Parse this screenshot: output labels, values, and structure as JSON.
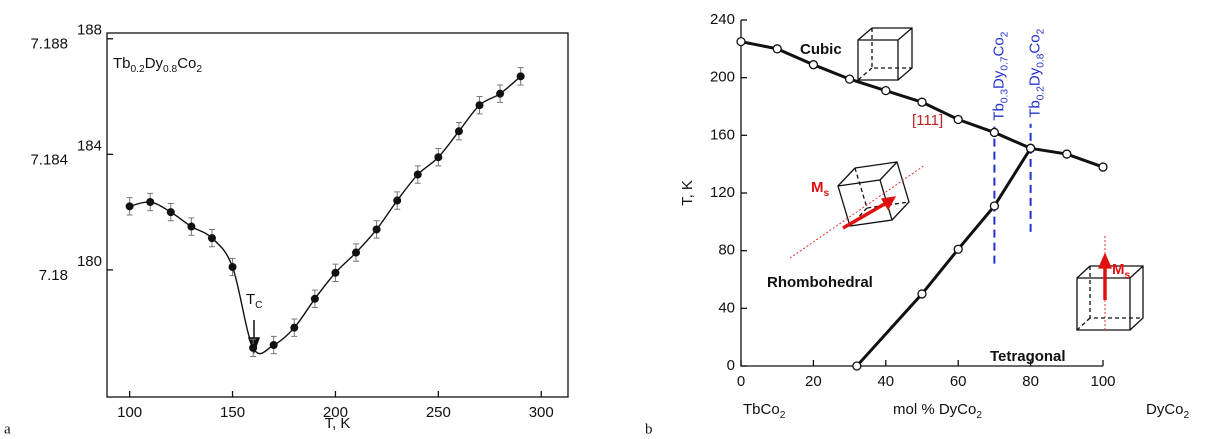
{
  "chart_data": [
    {
      "type": "scatter-line",
      "panel": "a",
      "title": [
        "Tb",
        "0.2",
        "Dy",
        "0.8",
        "Co",
        "2"
      ],
      "x_label": "T, K",
      "annotation": [
        "T",
        "C"
      ],
      "x": [
        100,
        110,
        120,
        130,
        140,
        150,
        160,
        170,
        180,
        190,
        200,
        210,
        220,
        230,
        240,
        250,
        260,
        270,
        280,
        290
      ],
      "values": [
        182.2,
        182.35,
        182.0,
        181.5,
        181.1,
        180.1,
        177.3,
        177.4,
        178.0,
        179.0,
        179.9,
        180.6,
        181.4,
        182.4,
        183.3,
        183.9,
        184.8,
        185.7,
        186.1,
        186.7
      ],
      "errors": [
        0.3,
        0.3,
        0.3,
        0.3,
        0.3,
        0.3,
        0.3,
        0.3,
        0.3,
        0.3,
        0.3,
        0.3,
        0.3,
        0.3,
        0.3,
        0.3,
        0.3,
        0.3,
        0.3,
        0.3
      ],
      "color": "#111111",
      "xlim": [
        89,
        313
      ],
      "xticks": [
        100,
        150,
        200,
        250,
        300
      ],
      "ylim": [
        175.6,
        188.2
      ],
      "yticks": [
        180,
        184,
        188
      ],
      "y2lim": [
        7.1756,
        7.1882
      ],
      "y2ticks": [
        7.18,
        7.184,
        7.188
      ]
    },
    {
      "type": "line",
      "panel": "b",
      "y_label": "T, K",
      "x_labels": [
        [
          "TbCo",
          "2"
        ],
        [
          "mol %  DyCo",
          "2"
        ],
        [
          "DyCo",
          "2"
        ]
      ],
      "series": [
        {
          "color": "#111111",
          "x": [
            0,
            10,
            20,
            30,
            40,
            50,
            60,
            70,
            80,
            90,
            100
          ],
          "values": [
            225,
            220,
            209,
            199,
            191,
            183,
            171,
            162,
            151,
            147,
            138
          ]
        },
        {
          "color": "#111111",
          "x": [
            32,
            50,
            60,
            70,
            80
          ],
          "values": [
            0,
            50,
            81,
            111,
            151
          ]
        }
      ],
      "compositions": [
        {
          "x": 70,
          "y": [
            71,
            166
          ],
          "label": [
            "Tb",
            "0.3",
            "Dy",
            "0.7",
            "Co",
            "2"
          ]
        },
        {
          "x": 80,
          "y": [
            93,
            168
          ],
          "label": [
            "Tb",
            "0.2",
            "Dy",
            "0.8",
            "Co",
            "2"
          ]
        }
      ],
      "composition_color": "#2233cc",
      "annotations": [
        [
          "Cubic"
        ],
        [
          "Rhombohedral"
        ],
        [
          "Tetragonal"
        ],
        [
          "[111]"
        ],
        [
          "M",
          "s"
        ],
        [
          "M",
          "s"
        ]
      ],
      "xlim": [
        0,
        100
      ],
      "xticks": [
        0,
        20,
        40,
        60,
        80,
        100
      ],
      "ylim": [
        0,
        240
      ],
      "yticks": [
        0,
        40,
        80,
        120,
        160,
        200,
        240
      ]
    }
  ]
}
